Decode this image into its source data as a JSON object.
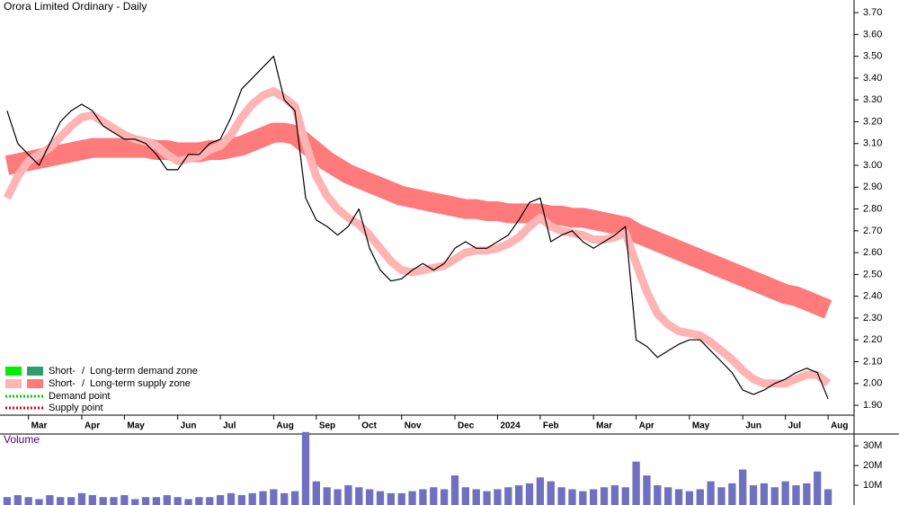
{
  "chart_data": {
    "type": "line",
    "title": "Orora Limited Ordinary - Daily",
    "volume_title": "Volume",
    "categories": [
      null,
      null,
      "Mar",
      null,
      null,
      null,
      null,
      "Apr",
      null,
      null,
      null,
      "May",
      null,
      null,
      null,
      null,
      "Jun",
      null,
      null,
      null,
      "Jul",
      null,
      null,
      null,
      null,
      "Aug",
      null,
      null,
      null,
      "Sep",
      null,
      null,
      null,
      "Oct",
      null,
      null,
      null,
      "Nov",
      null,
      null,
      null,
      null,
      "Dec",
      null,
      null,
      null,
      "2024",
      null,
      null,
      null,
      "Feb",
      null,
      null,
      null,
      null,
      "Mar",
      null,
      null,
      null,
      "Apr",
      null,
      null,
      null,
      null,
      "May",
      null,
      null,
      null,
      null,
      "Jun",
      null,
      null,
      null,
      "Jul",
      null,
      null,
      null,
      "Aug"
    ],
    "close": {
      "name": "Close",
      "color": "#000000",
      "values": [
        3.25,
        3.1,
        3.05,
        3.0,
        3.1,
        3.2,
        3.25,
        3.28,
        3.25,
        3.18,
        3.15,
        3.12,
        3.12,
        3.1,
        3.05,
        2.98,
        2.98,
        3.05,
        3.05,
        3.1,
        3.12,
        3.22,
        3.35,
        3.4,
        3.45,
        3.5,
        3.3,
        3.25,
        2.85,
        2.75,
        2.72,
        2.68,
        2.72,
        2.8,
        2.62,
        2.52,
        2.47,
        2.48,
        2.52,
        2.55,
        2.52,
        2.55,
        2.62,
        2.65,
        2.62,
        2.62,
        2.65,
        2.68,
        2.75,
        2.83,
        2.85,
        2.65,
        2.68,
        2.7,
        2.65,
        2.62,
        2.65,
        2.68,
        2.72,
        2.2,
        2.17,
        2.12,
        2.15,
        2.18,
        2.2,
        2.2,
        2.15,
        2.1,
        2.05,
        1.97,
        1.95,
        1.97,
        2.0,
        2.02,
        2.05,
        2.07,
        2.05,
        1.93
      ]
    },
    "short_term_zone": {
      "color": "#ffb3b3",
      "values": [
        2.85,
        2.95,
        3.02,
        3.05,
        3.08,
        3.13,
        3.18,
        3.22,
        3.23,
        3.2,
        3.17,
        3.14,
        3.12,
        3.11,
        3.09,
        3.05,
        3.02,
        3.03,
        3.04,
        3.07,
        3.09,
        3.14,
        3.22,
        3.28,
        3.32,
        3.34,
        3.31,
        3.27,
        3.1,
        2.95,
        2.86,
        2.8,
        2.76,
        2.73,
        2.68,
        2.62,
        2.56,
        2.52,
        2.51,
        2.52,
        2.53,
        2.54,
        2.57,
        2.6,
        2.61,
        2.61,
        2.62,
        2.64,
        2.67,
        2.72,
        2.76,
        2.72,
        2.7,
        2.69,
        2.68,
        2.66,
        2.66,
        2.67,
        2.69,
        2.55,
        2.42,
        2.32,
        2.27,
        2.24,
        2.23,
        2.22,
        2.19,
        2.15,
        2.11,
        2.06,
        2.02,
        2.0,
        2.0,
        2.0,
        2.02,
        2.04,
        2.04,
        2.0
      ]
    },
    "long_term_zone": {
      "color": "#ff7b7b",
      "values": [
        3.0,
        3.01,
        3.02,
        3.03,
        3.04,
        3.05,
        3.06,
        3.07,
        3.08,
        3.08,
        3.08,
        3.08,
        3.08,
        3.08,
        3.07,
        3.07,
        3.06,
        3.06,
        3.06,
        3.07,
        3.07,
        3.08,
        3.09,
        3.11,
        3.13,
        3.15,
        3.15,
        3.14,
        3.1,
        3.06,
        3.02,
        2.99,
        2.96,
        2.94,
        2.92,
        2.9,
        2.88,
        2.86,
        2.85,
        2.84,
        2.83,
        2.82,
        2.81,
        2.8,
        2.8,
        2.79,
        2.79,
        2.78,
        2.78,
        2.78,
        2.78,
        2.77,
        2.77,
        2.76,
        2.76,
        2.75,
        2.74,
        2.73,
        2.72,
        2.69,
        2.67,
        2.65,
        2.63,
        2.61,
        2.59,
        2.57,
        2.55,
        2.53,
        2.51,
        2.49,
        2.47,
        2.45,
        2.43,
        2.41,
        2.4,
        2.38,
        2.36,
        2.34
      ]
    },
    "volume": {
      "color": "#7070c0",
      "values": [
        4,
        5,
        4,
        3,
        5,
        4,
        4,
        6,
        5,
        4,
        4,
        5,
        3,
        4,
        4,
        5,
        4,
        3,
        4,
        4,
        5,
        6,
        5,
        6,
        7,
        8,
        6,
        7,
        37,
        12,
        9,
        8,
        10,
        9,
        8,
        7,
        6,
        6,
        7,
        8,
        9,
        8,
        15,
        9,
        8,
        7,
        8,
        9,
        10,
        11,
        14,
        12,
        9,
        8,
        7,
        8,
        9,
        10,
        9,
        22,
        15,
        10,
        9,
        8,
        7,
        8,
        12,
        9,
        11,
        18,
        10,
        11,
        9,
        12,
        10,
        11,
        17,
        8
      ]
    },
    "ylim": [
      1.855,
      3.758
    ],
    "yticks": [
      {
        "value": 1.9,
        "label": "1.90"
      },
      {
        "value": 2.0,
        "label": "2.00"
      },
      {
        "value": 2.1,
        "label": "2.10"
      },
      {
        "value": 2.2,
        "label": "2.20"
      },
      {
        "value": 2.3,
        "label": "2.30"
      },
      {
        "value": 2.4,
        "label": "2.40"
      },
      {
        "value": 2.5,
        "label": "2.50"
      },
      {
        "value": 2.6,
        "label": "2.60"
      },
      {
        "value": 2.7,
        "label": "2.70"
      },
      {
        "value": 2.8,
        "label": "2.80"
      },
      {
        "value": 2.9,
        "label": "2.90"
      },
      {
        "value": 3.0,
        "label": "3.00"
      },
      {
        "value": 3.1,
        "label": "3.10"
      },
      {
        "value": 3.2,
        "label": "3.20"
      },
      {
        "value": 3.3,
        "label": "3.30"
      },
      {
        "value": 3.4,
        "label": "3.40"
      },
      {
        "value": 3.5,
        "label": "3.50"
      },
      {
        "value": 3.6,
        "label": "3.60"
      },
      {
        "value": 3.7,
        "label": "3.70"
      }
    ],
    "y2lim": [
      0,
      36
    ],
    "y2ticks": [
      {
        "value": 10,
        "label": "10M"
      },
      {
        "value": 20,
        "label": "20M"
      },
      {
        "value": 30,
        "label": "30M"
      }
    ],
    "legend": {
      "separator": "/",
      "items": [
        {
          "short": "Short-",
          "long": "Long-term demand zone",
          "short_color": "#00ee00",
          "long_color": "#2e9e6e",
          "long_text_color": "#00bb00"
        },
        {
          "short": "Short-",
          "long": "Long-term supply zone",
          "short_color": "#ffb3b3",
          "long_color": "#ff7b7b",
          "long_text_color": "#ff5050"
        }
      ],
      "points": [
        {
          "text": "Demand point",
          "color": "#00cc00"
        },
        {
          "text": "Supply point",
          "color": "#dd0000"
        }
      ]
    }
  }
}
